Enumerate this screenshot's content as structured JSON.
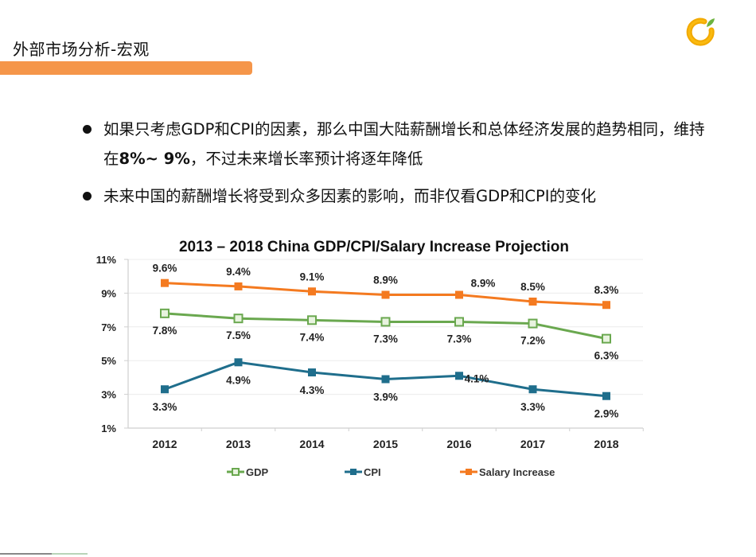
{
  "header": {
    "title": "外部市场分析-宏观",
    "accent_color": "#f5964a"
  },
  "logo": {
    "icon": "orange-fruit-logo-icon"
  },
  "bullets": [
    {
      "parts": [
        {
          "text": "如果只考虑GDP和CPI的因素，那么中国大陆薪酬增长和总体经济发展的趋势相同，维持在",
          "bold": false
        },
        {
          "text": "8%~ 9%",
          "bold": true
        },
        {
          "text": "，不过未来增长率预计将逐年降低",
          "bold": false
        }
      ]
    },
    {
      "parts": [
        {
          "text": "未来中国的薪酬增长将受到众多因素的影响，而非仅看GDP和CPI的变化",
          "bold": false
        }
      ]
    }
  ],
  "chart_data": {
    "type": "line",
    "title": "2013 – 2018 China GDP/CPI/Salary Increase Projection",
    "xlabel": "",
    "ylabel": "",
    "categories": [
      "2012",
      "2013",
      "2014",
      "2015",
      "2016",
      "2017",
      "2018"
    ],
    "ylim": [
      1,
      11
    ],
    "yticks": [
      1,
      3,
      5,
      7,
      9,
      11
    ],
    "ytick_labels": [
      "1%",
      "3%",
      "5%",
      "7%",
      "9%",
      "11%"
    ],
    "grid": true,
    "legend_position": "bottom",
    "series": [
      {
        "name": "GDP",
        "color": "#6aa84f",
        "marker": "hollow-square",
        "values": [
          7.8,
          7.5,
          7.4,
          7.3,
          7.3,
          7.2,
          6.3
        ],
        "labels": [
          "7.8%",
          "7.5%",
          "7.4%",
          "7.3%",
          "7.3%",
          "7.2%",
          "6.3%"
        ],
        "label_position": "below"
      },
      {
        "name": "CPI",
        "color": "#1f6e8c",
        "marker": "square",
        "values": [
          3.3,
          4.9,
          4.3,
          3.9,
          4.1,
          3.3,
          2.9
        ],
        "labels": [
          "3.3%",
          "4.9%",
          "4.3%",
          "3.9%",
          "4.1%",
          "3.3%",
          "2.9%"
        ],
        "label_position": "below"
      },
      {
        "name": "Salary Increase",
        "color": "#f47a20",
        "marker": "square",
        "values": [
          9.6,
          9.4,
          9.1,
          8.9,
          8.9,
          8.5,
          8.3
        ],
        "labels": [
          "9.6%",
          "9.4%",
          "9.1%",
          "8.9%",
          "8.9%",
          "8.5%",
          "8.3%"
        ],
        "label_position": "above"
      }
    ]
  }
}
